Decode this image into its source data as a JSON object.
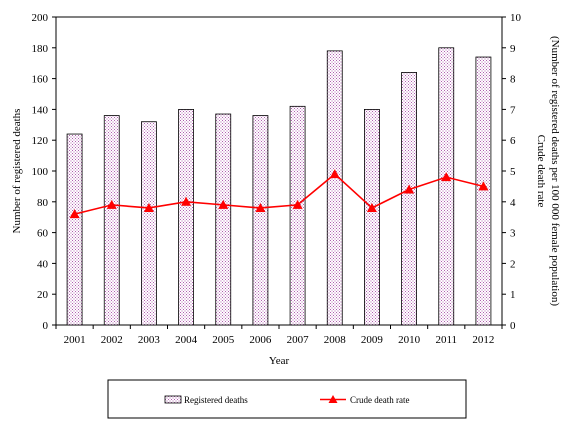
{
  "chart_data": {
    "type": "bar",
    "title": "",
    "xlabel": "Year",
    "ylabel_left": "Number of registered deaths",
    "ylabel_right": "Crude death rate (Number of registered deaths per 100 000 female population)",
    "categories": [
      "2001",
      "2002",
      "2003",
      "2004",
      "2005",
      "2006",
      "2007",
      "2008",
      "2009",
      "2010",
      "2011",
      "2012"
    ],
    "ylim_left": [
      0,
      200
    ],
    "yticks_left": [
      "0",
      "20",
      "40",
      "60",
      "80",
      "100",
      "120",
      "140",
      "160",
      "180",
      "200"
    ],
    "ylim_right": [
      0,
      10
    ],
    "yticks_right": [
      "0",
      "1",
      "2",
      "3",
      "4",
      "5",
      "6",
      "7",
      "8",
      "9",
      "10"
    ],
    "series": [
      {
        "name": "Registered deaths",
        "kind": "bar",
        "axis": "left",
        "color": "#c080c0",
        "values": [
          124,
          136,
          132,
          140,
          137,
          136,
          142,
          178,
          140,
          164,
          180,
          174
        ]
      },
      {
        "name": "Crude death rate",
        "kind": "line",
        "axis": "right",
        "color": "#ff0000",
        "values": [
          3.6,
          3.9,
          3.8,
          4.0,
          3.9,
          3.8,
          3.9,
          4.9,
          3.8,
          4.4,
          4.8,
          4.5
        ]
      }
    ],
    "grid": false,
    "legend": "bottom"
  }
}
